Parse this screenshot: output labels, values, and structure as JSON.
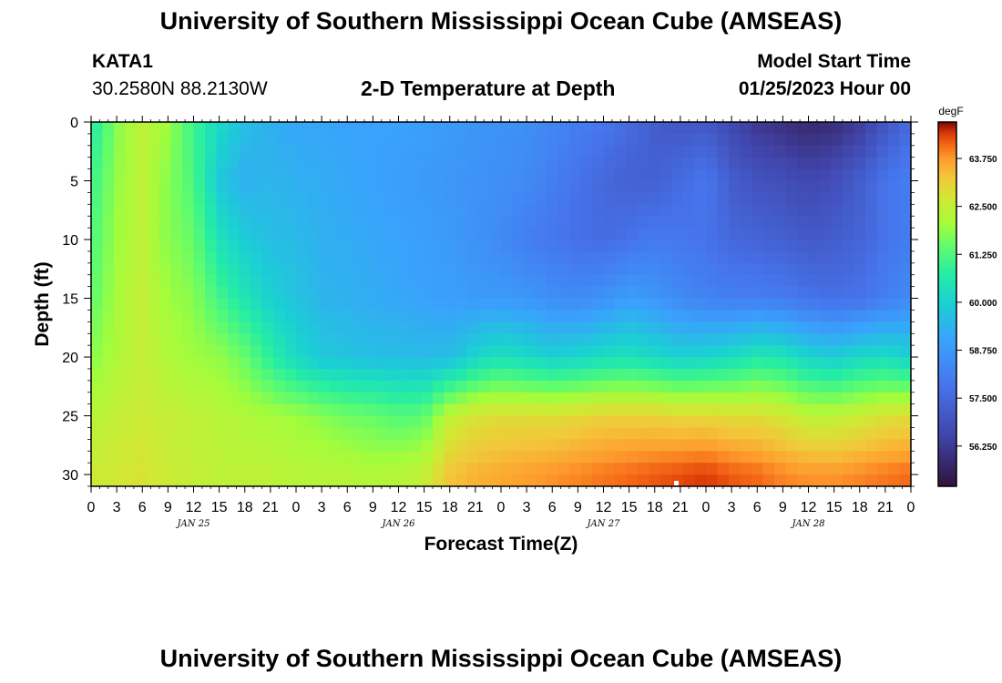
{
  "header": {
    "title": "University of Southern Mississippi Ocean Cube (AMSEAS)",
    "station_id": "KATA1",
    "station_coords": "30.2580N  88.2130W",
    "plot_name": "2-D Temperature at Depth",
    "model_start_label": "Model Start Time",
    "model_start_value": "01/25/2023 Hour 00"
  },
  "footer": {
    "title": "University of Southern Mississippi Ocean Cube (AMSEAS)"
  },
  "chart_data": {
    "type": "heatmap",
    "title": "2-D Temperature at Depth",
    "xlabel": "Forecast Time(Z)",
    "ylabel": "Depth (ft)",
    "x_tick_labels": [
      "0",
      "3",
      "6",
      "9",
      "12",
      "15",
      "18",
      "21",
      "0",
      "3",
      "6",
      "9",
      "12",
      "15",
      "18",
      "21",
      "0",
      "3",
      "6",
      "9",
      "12",
      "15",
      "18",
      "21",
      "0",
      "3",
      "6",
      "9",
      "12",
      "15",
      "18",
      "21",
      "0"
    ],
    "x_range_hours": [
      0,
      96
    ],
    "day_labels": [
      {
        "hour": 12,
        "label": "JAN 25"
      },
      {
        "hour": 36,
        "label": "JAN 26"
      },
      {
        "hour": 60,
        "label": "JAN 27"
      },
      {
        "hour": 84,
        "label": "JAN 28"
      }
    ],
    "y_ticks": [
      0,
      5,
      10,
      15,
      20,
      25,
      30
    ],
    "y_range": [
      0,
      31
    ],
    "y_inverted": true,
    "colorbar": {
      "unit": "degF",
      "range": [
        55.2,
        64.7
      ],
      "tick_values": [
        63.75,
        62.5,
        61.25,
        60.0,
        58.75,
        57.5,
        56.25
      ],
      "tick_labels": [
        "63.750",
        "62.500",
        "61.250",
        "60.000",
        "58.750",
        "57.500",
        "56.250"
      ]
    },
    "x_hours": [
      0,
      3,
      6,
      9,
      12,
      15,
      18,
      21,
      24,
      27,
      30,
      33,
      36,
      39,
      42,
      45,
      48,
      51,
      54,
      57,
      60,
      63,
      66,
      69,
      72,
      75,
      78,
      81,
      84,
      87,
      90,
      93,
      96
    ],
    "depths_ft": [
      0,
      5,
      10,
      15,
      20,
      25,
      30
    ],
    "temperature_degF": [
      [
        60.6,
        61.8,
        62.4,
        62.0,
        61.0,
        60.2,
        59.6,
        59.3,
        59.1,
        59.1,
        59.0,
        59.0,
        59.0,
        58.9,
        58.8,
        58.7,
        58.6,
        58.5,
        58.3,
        58.1,
        57.9,
        57.6,
        57.2,
        57.0,
        57.1,
        56.6,
        56.2,
        56.0,
        55.8,
        55.9,
        56.3,
        57.0,
        57.6
      ],
      [
        61.0,
        61.9,
        62.4,
        61.8,
        61.2,
        59.8,
        59.3,
        59.4,
        59.3,
        59.2,
        59.1,
        59.0,
        58.9,
        58.8,
        58.7,
        58.6,
        58.5,
        58.4,
        58.1,
        57.8,
        57.5,
        57.3,
        57.3,
        57.6,
        57.9,
        57.2,
        56.9,
        56.8,
        56.6,
        56.8,
        57.2,
        57.8,
        58.1
      ],
      [
        61.2,
        62.0,
        62.4,
        61.8,
        61.5,
        60.4,
        59.9,
        59.6,
        59.5,
        59.3,
        59.2,
        59.1,
        59.0,
        58.9,
        58.8,
        58.6,
        58.4,
        58.1,
        57.9,
        57.7,
        57.6,
        57.8,
        58.0,
        57.9,
        57.8,
        57.5,
        57.4,
        57.3,
        57.1,
        57.2,
        57.4,
        57.8,
        58.1
      ],
      [
        61.4,
        62.1,
        62.5,
        62.0,
        61.8,
        61.1,
        60.5,
        60.0,
        59.7,
        59.4,
        59.3,
        59.2,
        59.1,
        59.0,
        58.9,
        58.8,
        58.8,
        58.7,
        58.5,
        58.4,
        58.6,
        58.9,
        58.7,
        58.4,
        58.2,
        58.1,
        58.1,
        58.0,
        57.8,
        57.7,
        57.8,
        58.1,
        58.4
      ],
      [
        61.8,
        62.2,
        62.5,
        62.2,
        62.0,
        61.9,
        61.5,
        60.8,
        60.2,
        59.8,
        59.7,
        59.6,
        59.6,
        59.5,
        59.6,
        60.1,
        60.4,
        60.2,
        60.0,
        60.1,
        60.3,
        60.4,
        60.2,
        60.0,
        60.1,
        60.3,
        60.6,
        60.5,
        60.1,
        59.9,
        60.2,
        60.3,
        60.0
      ],
      [
        62.3,
        62.5,
        62.6,
        62.5,
        62.4,
        62.3,
        62.2,
        62.1,
        62.0,
        61.8,
        61.6,
        61.5,
        61.3,
        61.4,
        62.4,
        62.8,
        62.9,
        62.9,
        62.9,
        63.0,
        63.1,
        63.1,
        63.1,
        63.0,
        63.0,
        62.9,
        62.9,
        62.7,
        62.4,
        62.4,
        62.6,
        62.8,
        62.9
      ],
      [
        62.6,
        62.7,
        62.8,
        62.6,
        62.5,
        62.4,
        62.4,
        62.4,
        62.3,
        62.3,
        62.3,
        62.2,
        62.3,
        62.5,
        63.3,
        63.5,
        63.6,
        63.7,
        63.8,
        63.9,
        64.0,
        64.1,
        64.2,
        64.3,
        64.4,
        64.2,
        64.1,
        63.9,
        63.8,
        63.8,
        63.9,
        64.0,
        64.1
      ]
    ]
  }
}
